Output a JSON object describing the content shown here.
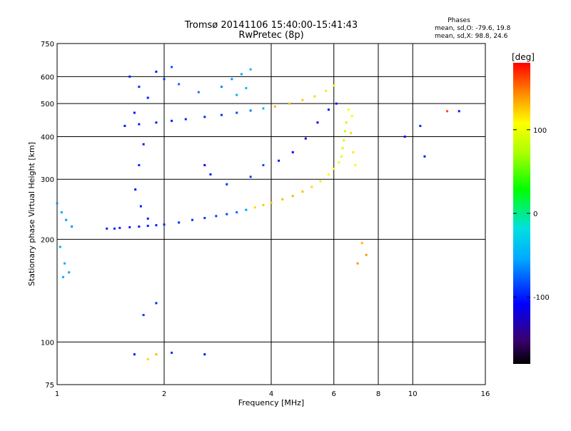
{
  "header": {
    "title": "Tromsø 20141106 15:40:00-15:41:43",
    "subtitle": "RwPretec (8p)",
    "stats_title": "Phases",
    "stats_o": "mean, sd,O: -79.6, 19.8",
    "stats_x": "mean, sd,X:  98.8, 24.6"
  },
  "chart_data": {
    "type": "scatter",
    "title": "Tromsø 20141106 15:40:00-15:41:43",
    "subtitle": "RwPretec (8p)",
    "xlabel": "Frequency [MHz]",
    "ylabel": "Stationary phase Virtual Height [km]",
    "xscale": "log",
    "yscale": "log",
    "xlim": [
      1,
      16
    ],
    "ylim": [
      75,
      750
    ],
    "xticks": [
      1,
      2,
      4,
      6,
      8,
      10,
      16
    ],
    "yticks": [
      75,
      100,
      200,
      300,
      400,
      500,
      600,
      750
    ],
    "grid": true,
    "colorbar": {
      "label": "[deg]",
      "range": [
        -180,
        180
      ],
      "ticks": [
        -100,
        0,
        100
      ]
    },
    "phase_stats": {
      "O": {
        "mean": -79.6,
        "sd": 19.8
      },
      "X": {
        "mean": 98.8,
        "sd": 24.6
      }
    },
    "series": [
      {
        "points": [
          [
            1.38,
            215,
            -95
          ],
          [
            1.45,
            215,
            -95
          ],
          [
            1.5,
            216,
            -96
          ],
          [
            1.6,
            217,
            -97
          ],
          [
            1.7,
            218,
            -98
          ],
          [
            1.8,
            219,
            -98
          ],
          [
            1.9,
            220,
            -98
          ],
          [
            2.0,
            221,
            -97
          ],
          [
            2.2,
            224,
            -95
          ],
          [
            2.4,
            228,
            -92
          ],
          [
            2.6,
            231,
            -90
          ],
          [
            2.8,
            234,
            -87
          ],
          [
            3.0,
            237,
            -85
          ],
          [
            3.2,
            240,
            -75
          ],
          [
            3.4,
            244,
            -60
          ],
          [
            3.6,
            248,
            120
          ],
          [
            3.8,
            252,
            125
          ],
          [
            4.0,
            256,
            125
          ],
          [
            4.3,
            262,
            128
          ],
          [
            4.6,
            268,
            130
          ],
          [
            4.9,
            276,
            128
          ],
          [
            5.2,
            285,
            120
          ],
          [
            5.5,
            296,
            115
          ],
          [
            5.8,
            310,
            110
          ],
          [
            6.0,
            322,
            108
          ],
          [
            6.2,
            336,
            100
          ],
          [
            6.3,
            350,
            95
          ],
          [
            6.35,
            370,
            90
          ],
          [
            6.4,
            390,
            88
          ],
          [
            6.45,
            415,
            85
          ],
          [
            6.5,
            440,
            82
          ],
          [
            1.55,
            430,
            -100
          ],
          [
            1.7,
            435,
            -100
          ],
          [
            1.9,
            440,
            -100
          ],
          [
            2.1,
            445,
            -99
          ],
          [
            2.3,
            450,
            -98
          ],
          [
            2.6,
            457,
            -96
          ],
          [
            2.9,
            463,
            -93
          ],
          [
            3.2,
            470,
            -85
          ],
          [
            3.5,
            477,
            -70
          ],
          [
            3.8,
            484,
            -50
          ],
          [
            4.1,
            490,
            130
          ],
          [
            4.5,
            500,
            128
          ],
          [
            4.9,
            512,
            125
          ],
          [
            5.3,
            525,
            120
          ],
          [
            5.7,
            545,
            115
          ],
          [
            6.0,
            565,
            110
          ],
          [
            1.0,
            255,
            -60
          ],
          [
            1.03,
            240,
            -55
          ],
          [
            1.06,
            228,
            -58
          ],
          [
            1.1,
            218,
            -60
          ],
          [
            1.02,
            190,
            -52
          ],
          [
            1.05,
            170,
            -50
          ],
          [
            1.08,
            160,
            -55
          ],
          [
            1.04,
            155,
            -52
          ],
          [
            1.6,
            600,
            -100
          ],
          [
            1.7,
            560,
            -95
          ],
          [
            1.8,
            520,
            -100
          ],
          [
            1.65,
            470,
            -105
          ],
          [
            1.75,
            380,
            -100
          ],
          [
            1.7,
            330,
            -95
          ],
          [
            1.66,
            280,
            -105
          ],
          [
            1.72,
            250,
            -100
          ],
          [
            1.8,
            230,
            -98
          ],
          [
            1.9,
            620,
            -100
          ],
          [
            2.0,
            590,
            -90
          ],
          [
            2.1,
            640,
            -80
          ],
          [
            2.2,
            570,
            -75
          ],
          [
            2.5,
            540,
            -70
          ],
          [
            2.9,
            560,
            -65
          ],
          [
            3.1,
            590,
            -60
          ],
          [
            3.3,
            610,
            -55
          ],
          [
            3.5,
            630,
            -45
          ],
          [
            3.2,
            530,
            -50
          ],
          [
            3.4,
            555,
            -40
          ],
          [
            2.6,
            330,
            -105
          ],
          [
            2.7,
            310,
            -100
          ],
          [
            3.0,
            290,
            -95
          ],
          [
            3.5,
            305,
            -90
          ],
          [
            3.8,
            330,
            -85
          ],
          [
            4.2,
            340,
            -100
          ],
          [
            4.6,
            360,
            -110
          ],
          [
            5.0,
            395,
            -115
          ],
          [
            5.4,
            440,
            -110
          ],
          [
            5.8,
            480,
            -105
          ],
          [
            6.1,
            500,
            -100
          ],
          [
            6.7,
            410,
            120
          ],
          [
            6.8,
            360,
            115
          ],
          [
            6.9,
            330,
            110
          ],
          [
            6.6,
            480,
            100
          ],
          [
            6.75,
            460,
            110
          ],
          [
            1.65,
            92,
            -100
          ],
          [
            1.8,
            89,
            120
          ],
          [
            1.9,
            92,
            130
          ],
          [
            2.1,
            93,
            -95
          ],
          [
            2.6,
            92,
            -100
          ],
          [
            1.75,
            120,
            -90
          ],
          [
            1.9,
            130,
            -95
          ],
          [
            7.2,
            195,
            130
          ],
          [
            7.4,
            180,
            140
          ],
          [
            7.0,
            170,
            140
          ],
          [
            9.5,
            400,
            -105
          ],
          [
            10.5,
            430,
            -95
          ],
          [
            10.8,
            350,
            -100
          ],
          [
            12.5,
            475,
            160
          ],
          [
            13.5,
            475,
            -100
          ]
        ]
      }
    ]
  }
}
